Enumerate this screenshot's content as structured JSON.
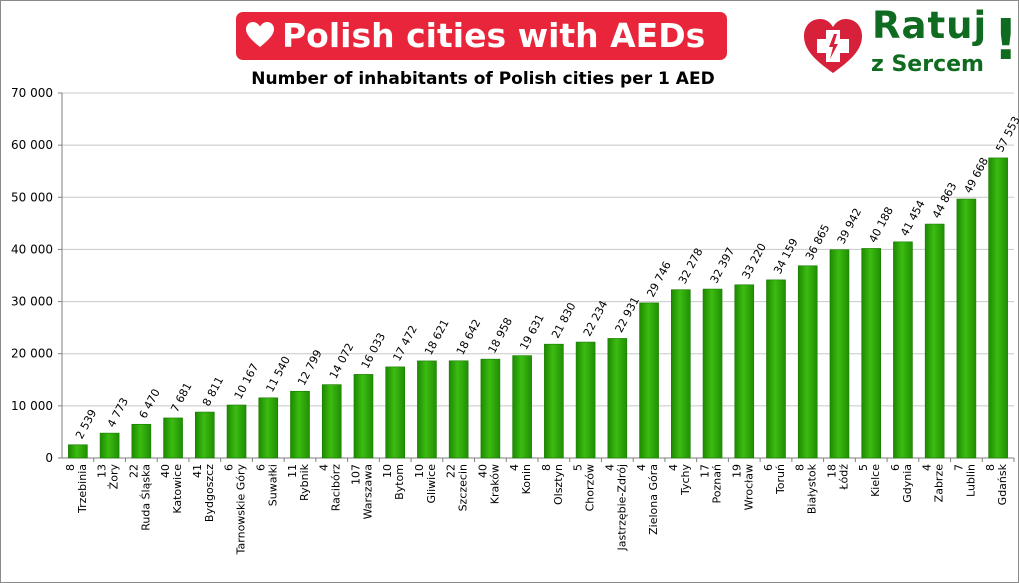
{
  "banner": {
    "title": "Polish cities with AEDs"
  },
  "logo": {
    "line1": "Ratuj",
    "line2": "z Sercem",
    "exclamation": "!"
  },
  "colors": {
    "banner_red": "#e8253a",
    "bar_green": "#2ea80a",
    "logo_green": "#0f6b1f",
    "logo_red": "#d7203a"
  },
  "chart_data": {
    "type": "bar",
    "title": "Number of inhabitants of Polish cities per 1 AED",
    "xlabel": "",
    "ylabel": "",
    "ylim": [
      0,
      70000
    ],
    "y_ticks": [
      "0",
      "10 000",
      "20 000",
      "30 000",
      "40 000",
      "50 000",
      "60 000",
      "70 000"
    ],
    "grid": true,
    "categories": [
      {
        "count": "8",
        "city": "Trzebinia"
      },
      {
        "count": "13",
        "city": "Żory"
      },
      {
        "count": "22",
        "city": "Ruda Śląska"
      },
      {
        "count": "40",
        "city": "Katowice"
      },
      {
        "count": "41",
        "city": "Bydgoszcz"
      },
      {
        "count": "6",
        "city": "Tarnowskie Góry"
      },
      {
        "count": "6",
        "city": "Suwałki"
      },
      {
        "count": "11",
        "city": "Rybnik"
      },
      {
        "count": "4",
        "city": "Racibórz"
      },
      {
        "count": "107",
        "city": "Warszawa"
      },
      {
        "count": "10",
        "city": "Bytom"
      },
      {
        "count": "10",
        "city": "Gliwice"
      },
      {
        "count": "22",
        "city": "Szczecin"
      },
      {
        "count": "40",
        "city": "Kraków"
      },
      {
        "count": "4",
        "city": "Konin"
      },
      {
        "count": "8",
        "city": "Olsztyn"
      },
      {
        "count": "5",
        "city": "Chorzów"
      },
      {
        "count": "4",
        "city": "Jastrzębie-Zdrój"
      },
      {
        "count": "4",
        "city": "Zielona Góra"
      },
      {
        "count": "4",
        "city": "Tychy"
      },
      {
        "count": "17",
        "city": "Poznań"
      },
      {
        "count": "19",
        "city": "Wrocław"
      },
      {
        "count": "6",
        "city": "Toruń"
      },
      {
        "count": "8",
        "city": "Białystok"
      },
      {
        "count": "18",
        "city": "Łódź"
      },
      {
        "count": "5",
        "city": "Kielce"
      },
      {
        "count": "6",
        "city": "Gdynia"
      },
      {
        "count": "4",
        "city": "Zabrze"
      },
      {
        "count": "7",
        "city": "Lublin"
      },
      {
        "count": "8",
        "city": "Gdańsk"
      }
    ],
    "values": [
      2539,
      4773,
      6470,
      7681,
      8811,
      10167,
      11540,
      12799,
      14072,
      16033,
      17472,
      18621,
      18642,
      18958,
      19631,
      21830,
      22234,
      22931,
      29746,
      32278,
      32397,
      33220,
      34159,
      36865,
      39942,
      40188,
      41454,
      44863,
      49668,
      57553
    ],
    "value_labels": [
      "2 539",
      "4 773",
      "6 470",
      "7 681",
      "8 811",
      "10 167",
      "11 540",
      "12 799",
      "14 072",
      "16 033",
      "17 472",
      "18 621",
      "18 642",
      "18 958",
      "19 631",
      "21 830",
      "22 234",
      "22 931",
      "29 746",
      "32 278",
      "32 397",
      "33 220",
      "34 159",
      "36 865",
      "39 942",
      "40 188",
      "41 454",
      "44 863",
      "49 668",
      "57 553"
    ]
  }
}
